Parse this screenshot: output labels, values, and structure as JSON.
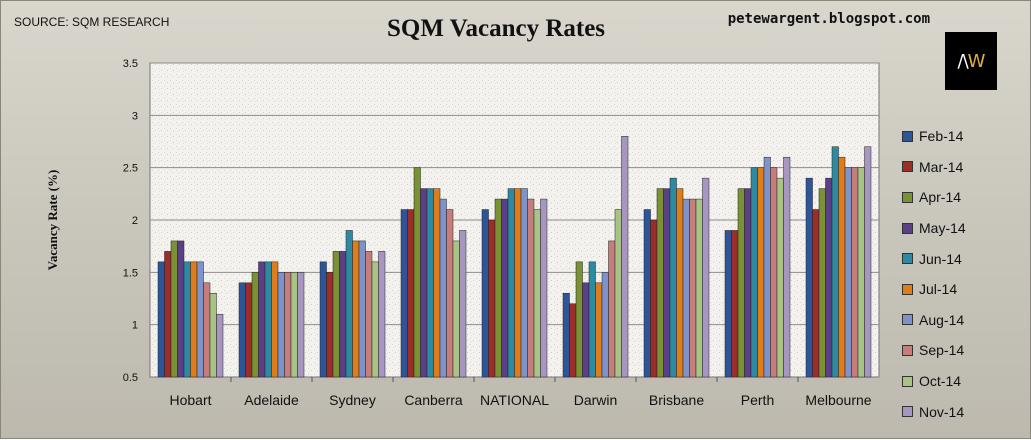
{
  "header": {
    "source": "SOURCE: SQM RESEARCH",
    "blog": "petewargent.blogspot.com",
    "logo_left": "/\\",
    "logo_right": "W"
  },
  "colors": [
    "#2e5597",
    "#9b2d2a",
    "#7a9233",
    "#5b3f87",
    "#2d8aa3",
    "#e07d1b",
    "#7d93c9",
    "#c67e7c",
    "#a8c383",
    "#a896c2"
  ],
  "chart_data": {
    "type": "bar",
    "title": "SQM Vacancy Rates",
    "xlabel": "",
    "ylabel": "Vacancy Rate (%)",
    "ylim": [
      0.5,
      3.5
    ],
    "yticks": [
      "0.5",
      "1",
      "1.5",
      "2",
      "2.5",
      "3",
      "3.5"
    ],
    "grid": true,
    "legend_position": "right",
    "categories": [
      "Hobart",
      "Adelaide",
      "Sydney",
      "Canberra",
      "NATIONAL",
      "Darwin",
      "Brisbane",
      "Perth",
      "Melbourne"
    ],
    "series": [
      {
        "name": "Feb-14",
        "values": [
          1.6,
          1.4,
          1.6,
          2.1,
          2.1,
          1.3,
          2.1,
          1.9,
          2.4
        ]
      },
      {
        "name": "Mar-14",
        "values": [
          1.7,
          1.4,
          1.5,
          2.1,
          2.0,
          1.2,
          2.0,
          1.9,
          2.1
        ]
      },
      {
        "name": "Apr-14",
        "values": [
          1.8,
          1.5,
          1.7,
          2.5,
          2.2,
          1.6,
          2.3,
          2.3,
          2.3
        ]
      },
      {
        "name": "May-14",
        "values": [
          1.8,
          1.6,
          1.7,
          2.3,
          2.2,
          1.4,
          2.3,
          2.3,
          2.4
        ]
      },
      {
        "name": "Jun-14",
        "values": [
          1.6,
          1.6,
          1.9,
          2.3,
          2.3,
          1.6,
          2.4,
          2.5,
          2.7
        ]
      },
      {
        "name": "Jul-14",
        "values": [
          1.6,
          1.6,
          1.8,
          2.3,
          2.3,
          1.4,
          2.3,
          2.5,
          2.6
        ]
      },
      {
        "name": "Aug-14",
        "values": [
          1.6,
          1.5,
          1.8,
          2.2,
          2.3,
          1.5,
          2.2,
          2.6,
          2.5
        ]
      },
      {
        "name": "Sep-14",
        "values": [
          1.4,
          1.5,
          1.7,
          2.1,
          2.2,
          1.8,
          2.2,
          2.5,
          2.5
        ]
      },
      {
        "name": "Oct-14",
        "values": [
          1.3,
          1.5,
          1.6,
          1.8,
          2.1,
          2.1,
          2.2,
          2.4,
          2.5
        ]
      },
      {
        "name": "Nov-14",
        "values": [
          1.1,
          1.5,
          1.7,
          1.9,
          2.2,
          2.8,
          2.4,
          2.6,
          2.7
        ]
      }
    ]
  }
}
